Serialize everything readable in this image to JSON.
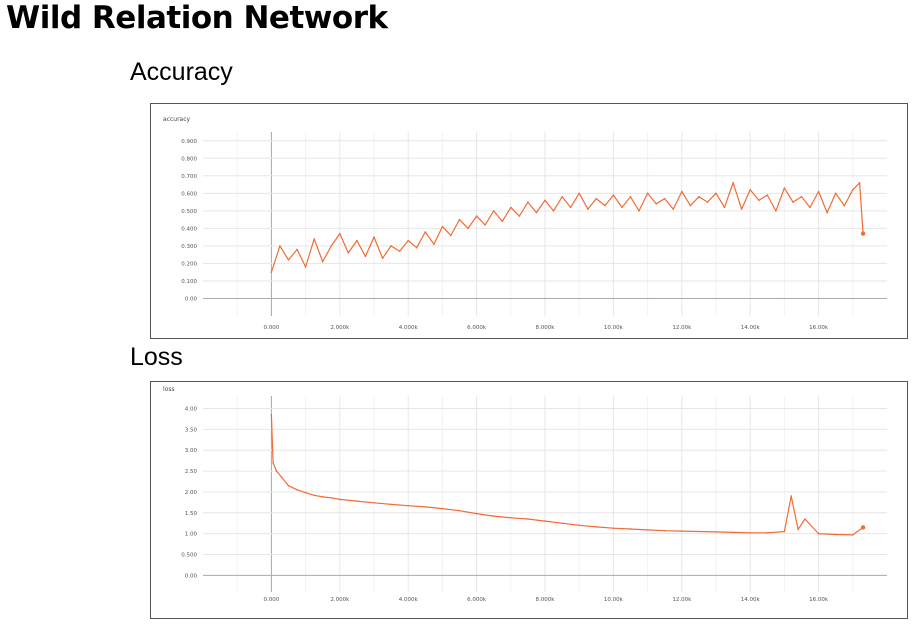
{
  "page": {
    "title": "Wild Relation Network",
    "accuracy_heading": "Accuracy",
    "loss_heading": "Loss"
  },
  "colors": {
    "series": "#f26b36",
    "series_faint": "#f9c4aa",
    "grid": "#e6e6e6",
    "axis_zero": "#aaaaaa"
  },
  "chart_data": [
    {
      "type": "line",
      "title": "accuracy",
      "xlabel": "",
      "ylabel": "",
      "xlim": [
        -2000,
        18000
      ],
      "ylim": [
        -0.1,
        0.95
      ],
      "x_ticks": [
        0,
        2000,
        4000,
        6000,
        8000,
        10000,
        12000,
        14000,
        16000
      ],
      "x_tick_labels": [
        "0.000",
        "2.000k",
        "4.000k",
        "6.000k",
        "8.000k",
        "10.00k",
        "12.00k",
        "14.00k",
        "16.00k"
      ],
      "y_ticks": [
        0,
        0.1,
        0.2,
        0.3,
        0.4,
        0.5,
        0.6,
        0.7,
        0.8,
        0.9
      ],
      "y_tick_labels": [
        "0.00",
        "0.100",
        "0.200",
        "0.300",
        "0.400",
        "0.500",
        "0.600",
        "0.700",
        "0.800",
        "0.900"
      ],
      "grid": true,
      "series": [
        {
          "x": [
            0,
            250,
            500,
            750,
            1000,
            1250,
            1500,
            1750,
            2000,
            2250,
            2500,
            2750,
            3000,
            3250,
            3500,
            3750,
            4000,
            4250,
            4500,
            4750,
            5000,
            5250,
            5500,
            5750,
            6000,
            6250,
            6500,
            6750,
            7000,
            7250,
            7500,
            7750,
            8000,
            8250,
            8500,
            8750,
            9000,
            9250,
            9500,
            9750,
            10000,
            10250,
            10500,
            10750,
            11000,
            11250,
            11500,
            11750,
            12000,
            12250,
            12500,
            12750,
            13000,
            13250,
            13500,
            13750,
            14000,
            14250,
            14500,
            14750,
            15000,
            15250,
            15500,
            15750,
            16000,
            16250,
            16500,
            16750,
            17000,
            17200,
            17300
          ],
          "values": [
            0.15,
            0.3,
            0.22,
            0.28,
            0.18,
            0.34,
            0.21,
            0.3,
            0.37,
            0.26,
            0.33,
            0.24,
            0.35,
            0.23,
            0.3,
            0.27,
            0.33,
            0.29,
            0.38,
            0.31,
            0.41,
            0.36,
            0.45,
            0.4,
            0.47,
            0.42,
            0.5,
            0.44,
            0.52,
            0.47,
            0.55,
            0.49,
            0.56,
            0.5,
            0.58,
            0.52,
            0.6,
            0.51,
            0.57,
            0.53,
            0.59,
            0.52,
            0.58,
            0.5,
            0.6,
            0.54,
            0.57,
            0.51,
            0.61,
            0.53,
            0.58,
            0.55,
            0.6,
            0.52,
            0.66,
            0.51,
            0.62,
            0.56,
            0.59,
            0.5,
            0.63,
            0.55,
            0.58,
            0.52,
            0.61,
            0.49,
            0.6,
            0.53,
            0.62,
            0.66,
            0.37
          ]
        }
      ]
    },
    {
      "type": "line",
      "title": "loss",
      "xlabel": "",
      "ylabel": "",
      "xlim": [
        -2000,
        18000
      ],
      "ylim": [
        -0.4,
        4.3
      ],
      "x_ticks": [
        0,
        2000,
        4000,
        6000,
        8000,
        10000,
        12000,
        14000,
        16000
      ],
      "x_tick_labels": [
        "0.000",
        "2.000k",
        "4.000k",
        "6.000k",
        "8.000k",
        "10.00k",
        "12.00k",
        "14.00k",
        "16.00k"
      ],
      "y_ticks": [
        0,
        0.5,
        1,
        1.5,
        2,
        2.5,
        3,
        3.5,
        4
      ],
      "y_tick_labels": [
        "0.00",
        "0.500",
        "1.00",
        "1.50",
        "2.00",
        "2.50",
        "3.00",
        "3.50",
        "4.00"
      ],
      "grid": true,
      "series": [
        {
          "x": [
            0,
            50,
            150,
            300,
            500,
            750,
            1000,
            1250,
            1500,
            1750,
            2000,
            2500,
            3000,
            3500,
            4000,
            4500,
            5000,
            5500,
            6000,
            6500,
            7000,
            7500,
            8000,
            8500,
            9000,
            9500,
            10000,
            10500,
            11000,
            11500,
            12000,
            12500,
            13000,
            13500,
            14000,
            14500,
            15000,
            15200,
            15400,
            15600,
            16000,
            16500,
            17000,
            17300
          ],
          "values": [
            3.85,
            2.7,
            2.5,
            2.35,
            2.15,
            2.05,
            1.98,
            1.92,
            1.88,
            1.86,
            1.82,
            1.78,
            1.74,
            1.7,
            1.67,
            1.64,
            1.6,
            1.55,
            1.48,
            1.42,
            1.38,
            1.35,
            1.3,
            1.25,
            1.2,
            1.16,
            1.13,
            1.11,
            1.09,
            1.07,
            1.06,
            1.05,
            1.04,
            1.03,
            1.02,
            1.02,
            1.05,
            1.9,
            1.1,
            1.35,
            1.0,
            0.98,
            0.97,
            1.15
          ]
        }
      ]
    }
  ]
}
